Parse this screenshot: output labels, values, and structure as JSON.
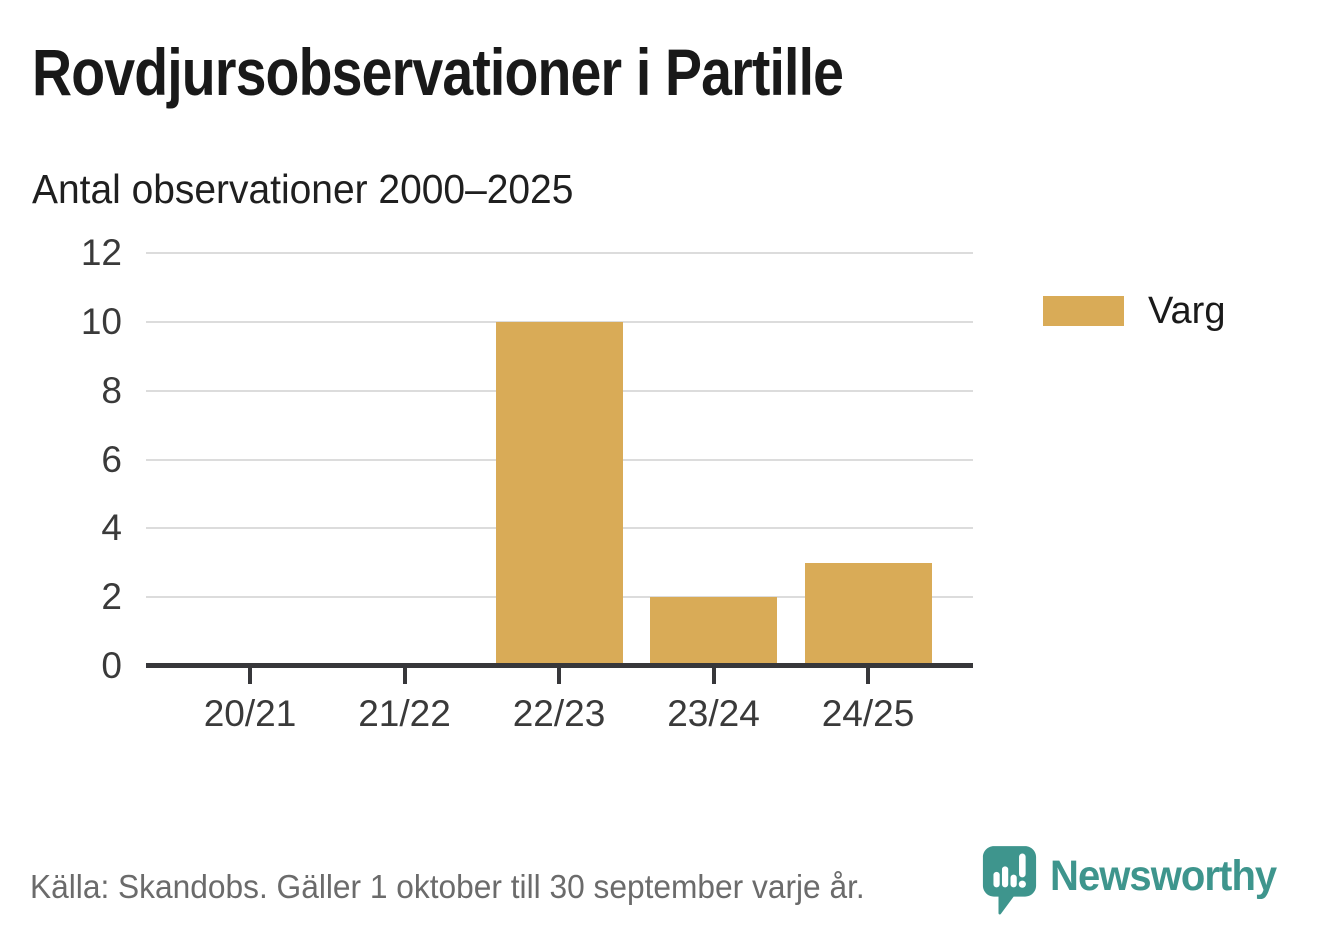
{
  "header": {
    "title": "Rovdjursobservationer i Partille",
    "subtitle": "Antal observationer 2000–2025"
  },
  "chart_data": {
    "type": "bar",
    "title": "Rovdjursobservationer i Partille",
    "subtitle": "Antal observationer 2000–2025",
    "categories": [
      "20/21",
      "21/22",
      "22/23",
      "23/24",
      "24/25"
    ],
    "series": [
      {
        "name": "Varg",
        "values": [
          0,
          0,
          10,
          2,
          3
        ]
      }
    ],
    "xlabel": "",
    "ylabel": "",
    "ylim": [
      0,
      12
    ],
    "yticks": [
      0,
      2,
      4,
      6,
      8,
      10,
      12
    ],
    "grid": true,
    "legend_position": "right"
  },
  "legend": {
    "items": [
      {
        "label": "Varg",
        "color": "#d9ab57"
      }
    ]
  },
  "footer": {
    "source": "Källa: Skandobs. Gäller 1 oktober till 30 september varje år.",
    "brand": "Newsworthy"
  },
  "colors": {
    "bar": "#d9ab57",
    "teal": "#3e958d",
    "axis": "#37373a",
    "grid": "#dcdcdc",
    "title_text": "#191919",
    "axis_text": "#3a3a3a",
    "source_text": "#6b6b6b"
  }
}
